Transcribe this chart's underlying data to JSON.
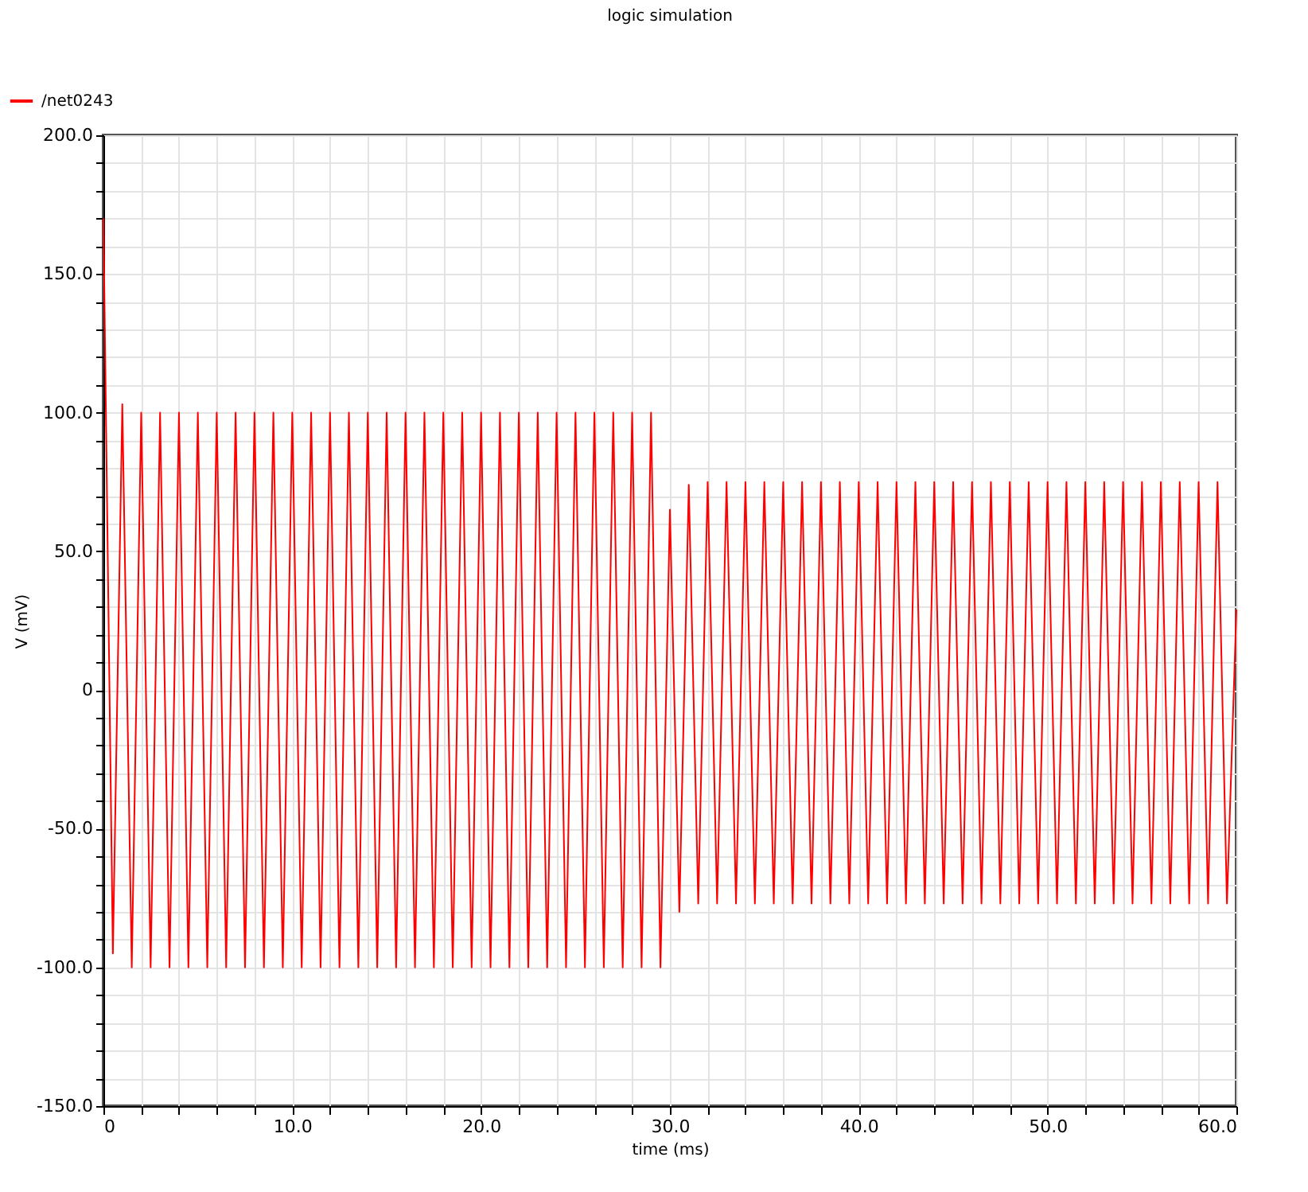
{
  "chart_data": {
    "type": "line",
    "title": "logic simulation",
    "xlabel": "time (ms)",
    "ylabel": "V (mV)",
    "x": [
      0,
      0.5,
      1,
      1.5,
      2,
      2.5,
      3,
      3.5,
      4,
      4.5,
      5,
      5.5,
      6,
      6.5,
      7,
      7.5,
      8,
      8.5,
      9,
      9.5,
      10,
      10.5,
      11,
      11.5,
      12,
      12.5,
      13,
      13.5,
      14,
      14.5,
      15,
      15.5,
      16,
      16.5,
      17,
      17.5,
      18,
      18.5,
      19,
      19.5,
      20,
      20.5,
      21,
      21.5,
      22,
      22.5,
      23,
      23.5,
      24,
      24.5,
      25,
      25.5,
      26,
      26.5,
      27,
      27.5,
      28,
      28.5,
      29,
      29.5,
      30,
      30.5,
      31,
      31.5,
      32,
      32.5,
      33,
      33.5,
      34,
      34.5,
      35,
      35.5,
      36,
      36.5,
      37,
      37.5,
      38,
      38.5,
      39,
      39.5,
      40,
      40.5,
      41,
      41.5,
      42,
      42.5,
      43,
      43.5,
      44,
      44.5,
      45,
      45.5,
      46,
      46.5,
      47,
      47.5,
      48,
      48.5,
      49,
      49.5,
      50,
      50.5,
      51,
      51.5,
      52,
      52.5,
      53,
      53.5,
      54,
      54.5,
      55,
      55.5,
      56,
      56.5,
      57,
      57.5,
      58,
      58.5,
      59,
      59.5,
      60
    ],
    "series": [
      {
        "name": "/net0243",
        "color": "#ff0000",
        "values": [
          170,
          -95,
          103,
          -100,
          100,
          -100,
          100,
          -100,
          100,
          -100,
          100,
          -100,
          100,
          -100,
          100,
          -100,
          100,
          -100,
          100,
          -100,
          100,
          -100,
          100,
          -100,
          100,
          -100,
          100,
          -100,
          100,
          -100,
          100,
          -100,
          100,
          -100,
          100,
          -100,
          100,
          -100,
          100,
          -100,
          100,
          -100,
          100,
          -100,
          100,
          -100,
          100,
          -100,
          100,
          -100,
          100,
          -100,
          100,
          -100,
          100,
          -100,
          100,
          -100,
          100,
          -100,
          65,
          -80,
          74,
          -77,
          75,
          -77,
          75,
          -77,
          75,
          -77,
          75,
          -77,
          75,
          -77,
          75,
          -77,
          75,
          -77,
          75,
          -77,
          75,
          -77,
          75,
          -77,
          75,
          -77,
          75,
          -77,
          75,
          -77,
          75,
          -77,
          75,
          -77,
          75,
          -77,
          75,
          -77,
          75,
          -77,
          75,
          -77,
          75,
          -77,
          75,
          -77,
          75,
          -77,
          75,
          -77,
          75,
          -77,
          75,
          -77,
          75,
          -77,
          75,
          -77,
          75,
          -77,
          29
        ]
      }
    ],
    "xlim": [
      0,
      60
    ],
    "xticks": [
      0,
      {
        "value": 2,
        "label": null
      },
      {
        "value": 4,
        "label": null
      },
      {
        "value": 6,
        "label": null
      },
      {
        "value": 8,
        "label": null
      },
      {
        "value": 10,
        "label": "10.0"
      },
      {
        "value": 12,
        "label": null
      },
      {
        "value": 14,
        "label": null
      },
      {
        "value": 16,
        "label": null
      },
      {
        "value": 18,
        "label": null
      },
      {
        "value": 20,
        "label": "20.0"
      },
      {
        "value": 22,
        "label": null
      },
      {
        "value": 24,
        "label": null
      },
      {
        "value": 26,
        "label": null
      },
      {
        "value": 28,
        "label": null
      },
      {
        "value": 30,
        "label": "30.0"
      },
      {
        "value": 32,
        "label": null
      },
      {
        "value": 34,
        "label": null
      },
      {
        "value": 36,
        "label": null
      },
      {
        "value": 38,
        "label": null
      },
      {
        "value": 40,
        "label": "40.0"
      },
      {
        "value": 42,
        "label": null
      },
      {
        "value": 44,
        "label": null
      },
      {
        "value": 46,
        "label": null
      },
      {
        "value": 48,
        "label": null
      },
      {
        "value": 50,
        "label": "50.0"
      },
      {
        "value": 52,
        "label": null
      },
      {
        "value": 54,
        "label": null
      },
      {
        "value": 56,
        "label": null
      },
      {
        "value": 58,
        "label": null
      },
      {
        "value": 60,
        "label": "60.0"
      }
    ],
    "ylim": [
      -150,
      200
    ],
    "yticks": [
      {
        "value": -150,
        "label": "-150.0"
      },
      {
        "value": -140,
        "label": null
      },
      {
        "value": -130,
        "label": null
      },
      {
        "value": -120,
        "label": null
      },
      {
        "value": -110,
        "label": null
      },
      {
        "value": -100,
        "label": "-100.0"
      },
      {
        "value": -90,
        "label": null
      },
      {
        "value": -80,
        "label": null
      },
      {
        "value": -70,
        "label": null
      },
      {
        "value": -60,
        "label": null
      },
      {
        "value": -50,
        "label": "-50.0"
      },
      {
        "value": -40,
        "label": null
      },
      {
        "value": -30,
        "label": null
      },
      {
        "value": -20,
        "label": null
      },
      {
        "value": -10,
        "label": null
      },
      0,
      {
        "value": 10,
        "label": null
      },
      {
        "value": 20,
        "label": null
      },
      {
        "value": 30,
        "label": null
      },
      {
        "value": 40,
        "label": null
      },
      {
        "value": 50,
        "label": "50.0"
      },
      {
        "value": 60,
        "label": null
      },
      {
        "value": 70,
        "label": null
      },
      {
        "value": 80,
        "label": null
      },
      {
        "value": 90,
        "label": null
      },
      {
        "value": 100,
        "label": "100.0"
      },
      {
        "value": 110,
        "label": null
      },
      {
        "value": 120,
        "label": null
      },
      {
        "value": 130,
        "label": null
      },
      {
        "value": 140,
        "label": null
      },
      {
        "value": 150,
        "label": "150.0"
      },
      {
        "value": 160,
        "label": null
      },
      {
        "value": 170,
        "label": null
      },
      {
        "value": 180,
        "label": null
      },
      {
        "value": 190,
        "label": null
      },
      {
        "value": 200,
        "label": "200.0"
      }
    ],
    "grid": true,
    "legend": "top left"
  }
}
